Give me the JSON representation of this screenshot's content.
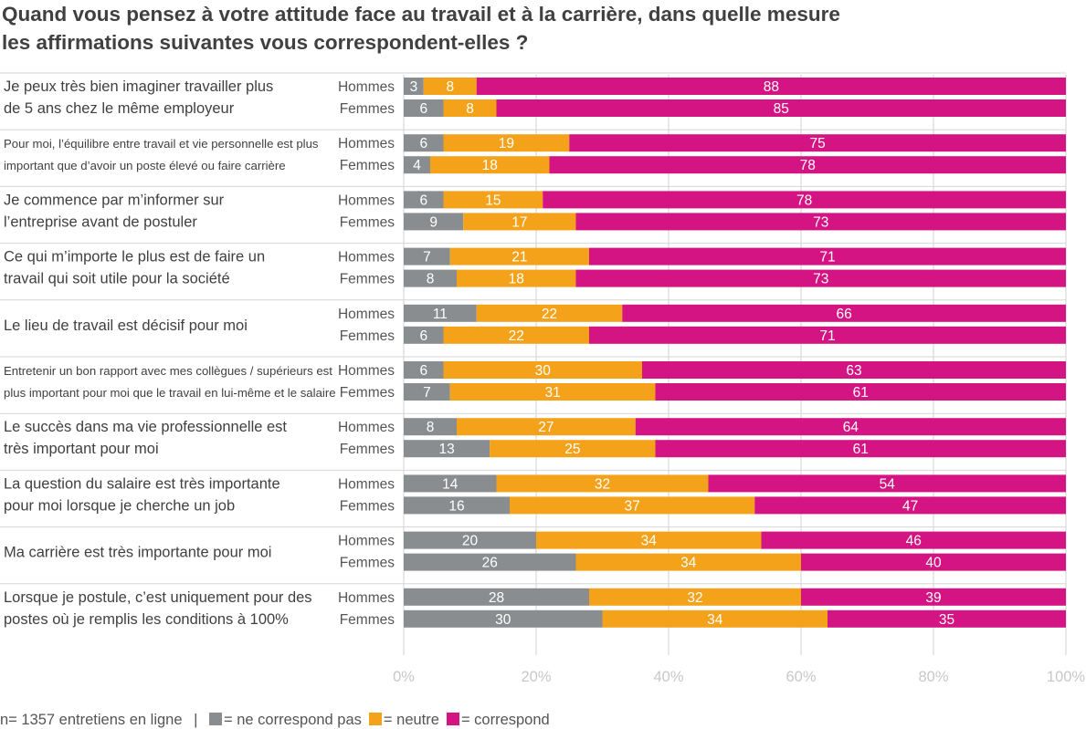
{
  "title": {
    "line1": "Quand vous pensez à votre attitude face au travail et à la carrière, dans quelle mesure",
    "line2": "les affirmations suivantes vous correspondent-elles ?"
  },
  "colors": {
    "ne_correspond_pas": "#8a8d8f",
    "neutre": "#f5a21b",
    "correspond": "#d41483",
    "text": "#404040",
    "axis_label": "#c8c8c8",
    "grid": "#d0d0d0"
  },
  "footer": {
    "sample": "n= 1357 entretiens en ligne",
    "separator": "|",
    "legend": [
      {
        "label": "= ne correspond pas",
        "color": "#8a8d8f"
      },
      {
        "label": "= neutre",
        "color": "#f5a21b"
      },
      {
        "label": "= correspond",
        "color": "#d41483"
      }
    ]
  },
  "chart_data": {
    "type": "bar",
    "orientation": "horizontal",
    "stacked": true,
    "xlim": [
      0,
      100
    ],
    "x_ticks": [
      "0%",
      "20%",
      "40%",
      "60%",
      "80%",
      "100%"
    ],
    "series_names": [
      "ne correspond pas",
      "neutre",
      "correspond"
    ],
    "groups": [
      {
        "statement": [
          "Je peux très bien imaginer travailler plus",
          "de 5 ans chez le même employeur"
        ],
        "small": false,
        "rows": [
          {
            "label": "Hommes",
            "values": [
              3,
              8,
              88
            ]
          },
          {
            "label": "Femmes",
            "values": [
              6,
              8,
              85
            ]
          }
        ]
      },
      {
        "statement": [
          "Pour moi, l’équilibre entre travail et vie personnelle est plus",
          "important que d’avoir un poste élevé ou faire carrière"
        ],
        "small": true,
        "rows": [
          {
            "label": "Hommes",
            "values": [
              6,
              19,
              75
            ]
          },
          {
            "label": "Femmes",
            "values": [
              4,
              18,
              78
            ]
          }
        ]
      },
      {
        "statement": [
          "Je commence par m’informer sur",
          "l’entreprise avant de postuler"
        ],
        "small": false,
        "rows": [
          {
            "label": "Hommes",
            "values": [
              6,
              15,
              78
            ]
          },
          {
            "label": "Femmes",
            "values": [
              9,
              17,
              73
            ]
          }
        ]
      },
      {
        "statement": [
          "Ce qui m’importe le plus est de faire un",
          "travail qui soit utile pour la société"
        ],
        "small": false,
        "rows": [
          {
            "label": "Hommes",
            "values": [
              7,
              21,
              71
            ]
          },
          {
            "label": "Femmes",
            "values": [
              8,
              18,
              73
            ]
          }
        ]
      },
      {
        "statement": [
          "Le lieu de travail est décisif pour moi"
        ],
        "small": false,
        "rows": [
          {
            "label": "Hommes",
            "values": [
              11,
              22,
              66
            ]
          },
          {
            "label": "Femmes",
            "values": [
              6,
              22,
              71
            ]
          }
        ]
      },
      {
        "statement": [
          "Entretenir un bon rapport avec mes collègues / supérieurs est",
          "plus important pour moi que le travail en lui-même et le salaire"
        ],
        "small": true,
        "rows": [
          {
            "label": "Hommes",
            "values": [
              6,
              30,
              63
            ]
          },
          {
            "label": "Femmes",
            "values": [
              7,
              31,
              61
            ]
          }
        ]
      },
      {
        "statement": [
          "Le succès dans ma vie professionnelle est",
          "très important pour moi"
        ],
        "small": false,
        "rows": [
          {
            "label": "Hommes",
            "values": [
              8,
              27,
              64
            ]
          },
          {
            "label": "Femmes",
            "values": [
              13,
              25,
              61
            ]
          }
        ]
      },
      {
        "statement": [
          "La question du salaire est très importante",
          "pour moi lorsque je cherche un job"
        ],
        "small": false,
        "rows": [
          {
            "label": "Hommes",
            "values": [
              14,
              32,
              54
            ]
          },
          {
            "label": "Femmes",
            "values": [
              16,
              37,
              47
            ]
          }
        ]
      },
      {
        "statement": [
          "Ma carrière est très importante pour moi"
        ],
        "small": false,
        "rows": [
          {
            "label": "Hommes",
            "values": [
              20,
              34,
              46
            ]
          },
          {
            "label": "Femmes",
            "values": [
              26,
              34,
              40
            ]
          }
        ]
      },
      {
        "statement": [
          "Lorsque je postule, c’est uniquement pour des",
          "postes où je remplis les conditions à 100%"
        ],
        "small": false,
        "rows": [
          {
            "label": "Hommes",
            "values": [
              28,
              32,
              39
            ]
          },
          {
            "label": "Femmes",
            "values": [
              30,
              34,
              35
            ]
          }
        ]
      }
    ]
  }
}
